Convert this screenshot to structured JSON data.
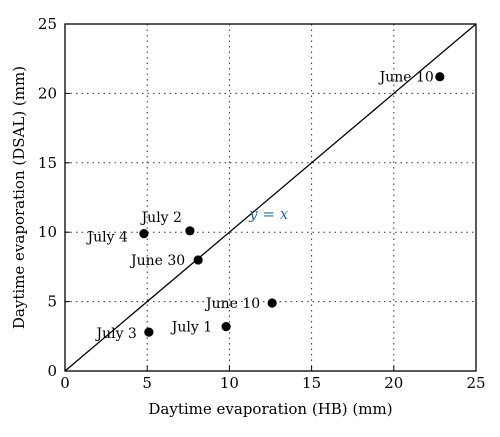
{
  "chart_data": {
    "type": "scatter",
    "xlabel": "Daytime evaporation (HB) (mm)",
    "ylabel": "Daytime evaporation (DSAL) (mm)",
    "xlim": [
      0,
      25
    ],
    "ylim": [
      0,
      25
    ],
    "x_ticks": [
      0,
      5,
      10,
      15,
      20,
      25
    ],
    "y_ticks": [
      0,
      5,
      10,
      15,
      20,
      25
    ],
    "grid": "dotted",
    "points": [
      {
        "label": "June 10",
        "x": 22.8,
        "y": 21.2
      },
      {
        "label": "July 2",
        "x": 7.6,
        "y": 10.1
      },
      {
        "label": "July 4",
        "x": 4.8,
        "y": 9.9
      },
      {
        "label": "June 30",
        "x": 8.1,
        "y": 8.0
      },
      {
        "label": "June 10",
        "x": 12.6,
        "y": 4.9
      },
      {
        "label": "July 1",
        "x": 9.8,
        "y": 3.2
      },
      {
        "label": "July 3",
        "x": 5.1,
        "y": 2.8
      }
    ],
    "reference_line": {
      "label": "y = x",
      "color": "#2a6ea6"
    }
  }
}
